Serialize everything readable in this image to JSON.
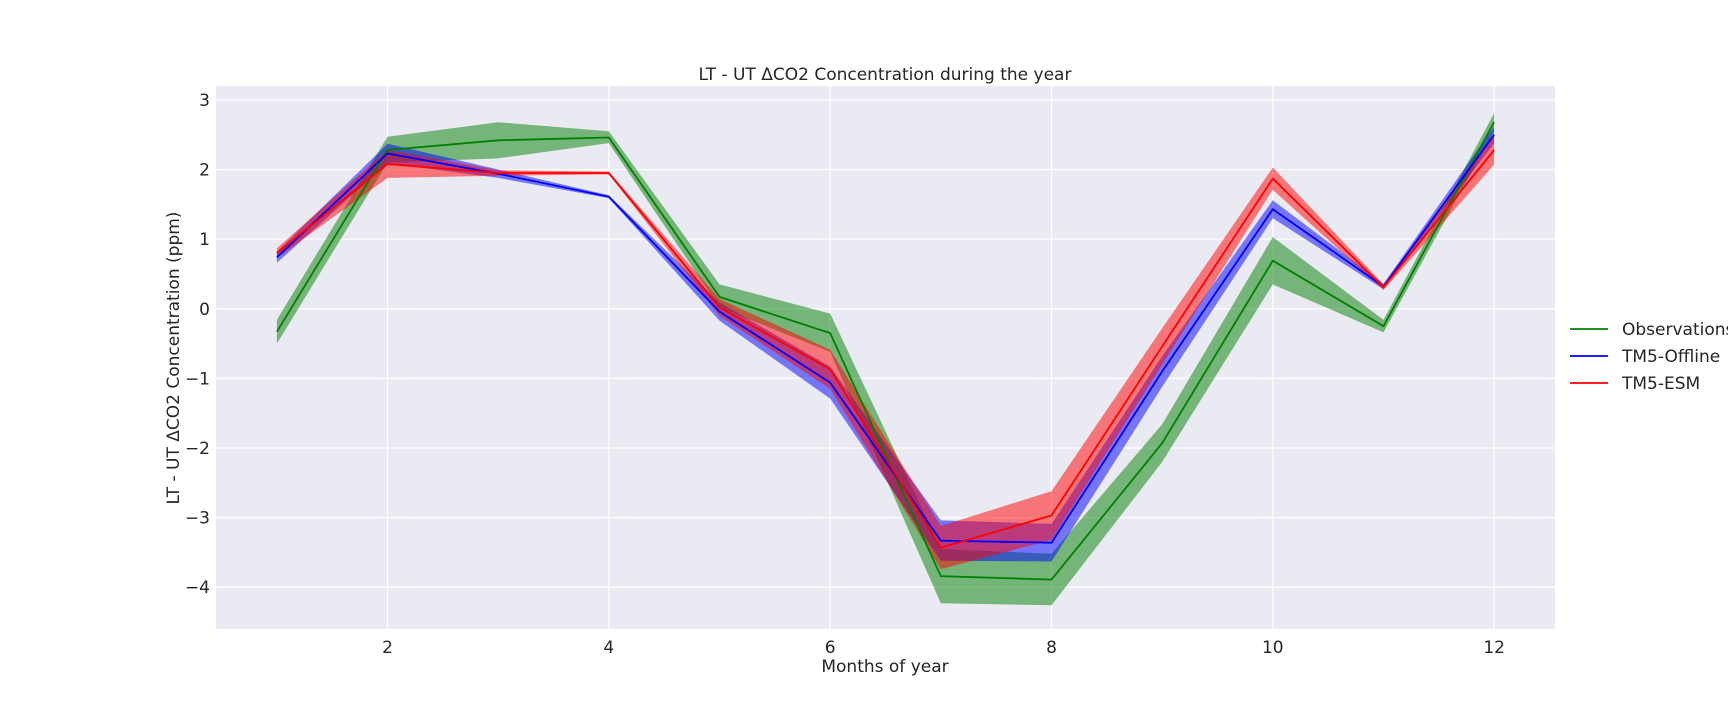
{
  "chart_data": {
    "type": "line",
    "title": "LT - UT ΔCO2 Concentration during the year",
    "xlabel": "Months of year",
    "ylabel": "LT - UT ΔCO2 Concentration (ppm)",
    "xlim": [
      0.45,
      12.55
    ],
    "ylim": [
      -4.6,
      3.2
    ],
    "xticks": [
      2,
      4,
      6,
      8,
      10,
      12
    ],
    "yticks": [
      3,
      2,
      1,
      0,
      -1,
      -2,
      -3,
      -4
    ],
    "ytick_labels": [
      "3",
      "2",
      "1",
      "0",
      "−1",
      "−2",
      "−3",
      "−4"
    ],
    "grid": true,
    "legend_placement": "right",
    "x": [
      1,
      2,
      3,
      4,
      5,
      6,
      7,
      8,
      9,
      10,
      11,
      12
    ],
    "series": [
      {
        "name": "Observations",
        "color": "#008000",
        "band_color": "#008000",
        "band_opacity": 0.5,
        "values": [
          -0.33,
          2.28,
          2.42,
          2.46,
          0.17,
          -0.35,
          -3.84,
          -3.89,
          -1.93,
          0.69,
          -0.25,
          2.68
        ],
        "lower": [
          -0.5,
          2.1,
          2.16,
          2.38,
          0.02,
          -0.62,
          -4.23,
          -4.26,
          -2.2,
          0.35,
          -0.34,
          2.55
        ],
        "upper": [
          -0.16,
          2.47,
          2.68,
          2.55,
          0.35,
          -0.07,
          -3.45,
          -3.52,
          -1.66,
          1.03,
          -0.16,
          2.81
        ]
      },
      {
        "name": "TM5-Offline",
        "color": "#0000ff",
        "band_color": "#0000ff",
        "band_opacity": 0.5,
        "values": [
          0.74,
          2.23,
          1.94,
          1.61,
          -0.04,
          -1.06,
          -3.33,
          -3.36,
          -0.9,
          1.43,
          0.32,
          2.5
        ],
        "lower": [
          0.66,
          2.09,
          1.88,
          1.59,
          -0.17,
          -1.29,
          -3.62,
          -3.63,
          -1.12,
          1.3,
          0.28,
          2.38
        ],
        "upper": [
          0.82,
          2.37,
          2.0,
          1.63,
          0.09,
          -0.83,
          -3.04,
          -3.09,
          -0.68,
          1.56,
          0.36,
          2.62
        ]
      },
      {
        "name": "TM5-ESM",
        "color": "#ff0000",
        "band_color": "#ff0000",
        "band_opacity": 0.5,
        "values": [
          0.8,
          2.08,
          1.95,
          1.95,
          0.02,
          -0.87,
          -3.43,
          -2.97,
          -0.54,
          1.87,
          0.31,
          2.28
        ],
        "lower": [
          0.73,
          1.88,
          1.91,
          1.93,
          -0.1,
          -1.15,
          -3.74,
          -3.32,
          -0.8,
          1.71,
          0.27,
          2.07
        ],
        "upper": [
          0.87,
          2.28,
          1.99,
          1.97,
          0.14,
          -0.59,
          -3.12,
          -2.62,
          -0.28,
          2.03,
          0.35,
          2.49
        ]
      }
    ]
  }
}
